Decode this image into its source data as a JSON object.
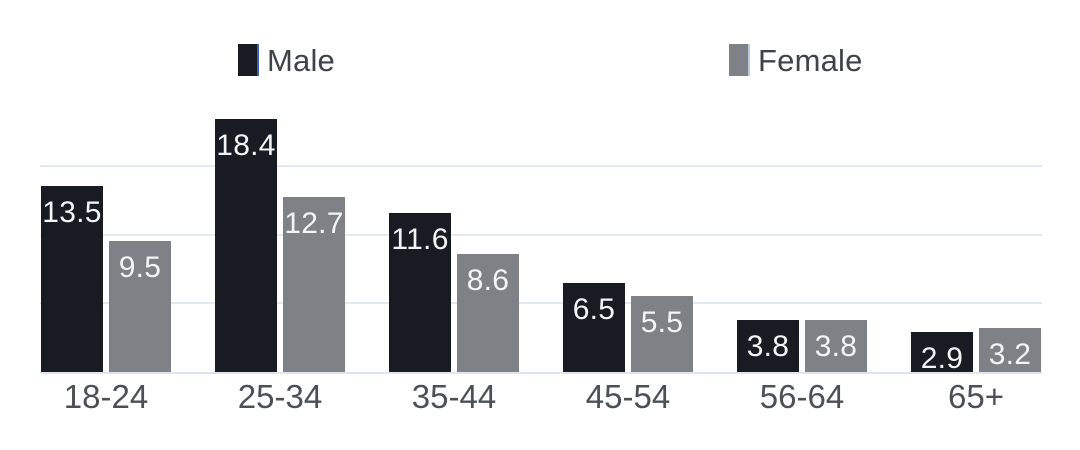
{
  "chart_data": {
    "type": "bar",
    "title": "",
    "categories": [
      "18-24",
      "25-34",
      "35-44",
      "45-54",
      "56-64",
      "65+"
    ],
    "series": [
      {
        "name": "Male",
        "color": "#181b22",
        "values": [
          13.5,
          18.4,
          11.6,
          6.5,
          3.8,
          2.9
        ]
      },
      {
        "name": "Female",
        "color": "#7e8186",
        "values": [
          9.5,
          12.7,
          8.6,
          5.5,
          3.8,
          3.2
        ]
      }
    ],
    "xlabel": "",
    "ylabel": "",
    "ylim": [
      0,
      20
    ],
    "y_gridlines": [
      5,
      10,
      15
    ],
    "grid": true,
    "legend_position": "top",
    "value_labels": true,
    "value_label_color": "#f3f4f6",
    "gridline_color": "#e3e9f3",
    "baseline_color": "#dde4ef",
    "axis_label_color": "#4c4f54",
    "legend_text_color": "#3f4246"
  }
}
